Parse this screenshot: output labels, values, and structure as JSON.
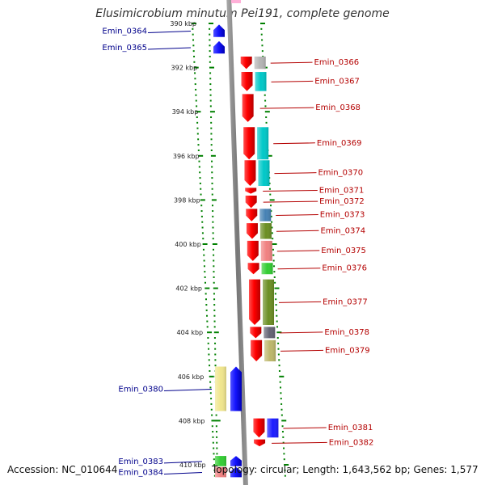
{
  "title": "Elusimicrobium minutum Pei191, complete genome",
  "footer": {
    "accession": "Accession: NC_010644",
    "summary": "Topology: circular; Length: 1,643,562 bp; Genes: 1,577"
  },
  "chart_data": {
    "type": "genome-map",
    "axis_unit": "kbp",
    "range_kbp": [
      390,
      410.4
    ],
    "ticks": [
      {
        "kbp": 390,
        "label": "390 kbp"
      },
      {
        "kbp": 392,
        "label": "392 kbp"
      },
      {
        "kbp": 394,
        "label": "394 kbp"
      },
      {
        "kbp": 396,
        "label": "396 kbp"
      },
      {
        "kbp": 398,
        "label": "398 kbp"
      },
      {
        "kbp": 400,
        "label": "400 kbp"
      },
      {
        "kbp": 402,
        "label": "402 kbp"
      },
      {
        "kbp": 404,
        "label": "404 kbp"
      },
      {
        "kbp": 406,
        "label": "406 kbp"
      },
      {
        "kbp": 408,
        "label": "408 kbp"
      },
      {
        "kbp": 410,
        "label": "410 kbp"
      }
    ],
    "genes": [
      {
        "id": "Emin_0364",
        "strand": "left",
        "start": 390.05,
        "end": 390.65,
        "color": "#1a1aff",
        "func_color": ""
      },
      {
        "id": "Emin_0365",
        "strand": "left",
        "start": 390.8,
        "end": 391.4,
        "color": "#1a1aff",
        "func_color": ""
      },
      {
        "id": "Emin_0366",
        "strand": "right",
        "start": 391.5,
        "end": 392.1,
        "color": "#ff0000",
        "func_color": "#b4b4b4"
      },
      {
        "id": "Emin_0367",
        "strand": "right",
        "start": 392.2,
        "end": 393.1,
        "color": "#ff0000",
        "func_color": "#00c8c8"
      },
      {
        "id": "Emin_0368",
        "strand": "right",
        "start": 393.2,
        "end": 394.5,
        "color": "#ff0000",
        "func_color": ""
      },
      {
        "id": "Emin_0369",
        "strand": "right",
        "start": 394.7,
        "end": 396.2,
        "color": "#ff0000",
        "func_color": "#00c8c8"
      },
      {
        "id": "Emin_0370",
        "strand": "right",
        "start": 396.2,
        "end": 397.4,
        "color": "#ff0000",
        "func_color": "#00c8c8"
      },
      {
        "id": "Emin_0371",
        "strand": "right",
        "start": 397.45,
        "end": 397.75,
        "color": "#ff0000",
        "func_color": ""
      },
      {
        "id": "Emin_0372",
        "strand": "right",
        "start": 397.8,
        "end": 398.4,
        "color": "#ff0000",
        "func_color": ""
      },
      {
        "id": "Emin_0373",
        "strand": "right",
        "start": 398.4,
        "end": 399.0,
        "color": "#ff0000",
        "func_color": "#4682b4"
      },
      {
        "id": "Emin_0374",
        "strand": "right",
        "start": 399.05,
        "end": 399.8,
        "color": "#ff0000",
        "func_color": "#6b8e23"
      },
      {
        "id": "Emin_0375",
        "strand": "right",
        "start": 399.85,
        "end": 400.8,
        "color": "#ff0000",
        "func_color": "#f08080"
      },
      {
        "id": "Emin_0376",
        "strand": "right",
        "start": 400.85,
        "end": 401.4,
        "color": "#ff0000",
        "func_color": "#32cd32"
      },
      {
        "id": "Emin_0377",
        "strand": "right",
        "start": 401.6,
        "end": 403.7,
        "color": "#ff0000",
        "func_color": "#6b8e23"
      },
      {
        "id": "Emin_0378",
        "strand": "right",
        "start": 403.75,
        "end": 404.3,
        "color": "#ff0000",
        "func_color": "#646473"
      },
      {
        "id": "Emin_0379",
        "strand": "right",
        "start": 404.35,
        "end": 405.35,
        "color": "#ff0000",
        "func_color": "#bdb76b"
      },
      {
        "id": "Emin_0380",
        "strand": "left",
        "start": 405.55,
        "end": 407.6,
        "color": "#1a1aff",
        "func_color": "#f0e68c"
      },
      {
        "id": "Emin_0381",
        "strand": "right",
        "start": 407.9,
        "end": 408.8,
        "color": "#ff0000",
        "func_color": "#1a1aff"
      },
      {
        "id": "Emin_0382",
        "strand": "right",
        "start": 408.85,
        "end": 409.2,
        "color": "#ff0000",
        "func_color": ""
      },
      {
        "id": "Emin_0383",
        "strand": "left",
        "start": 409.6,
        "end": 410.1,
        "color": "#1a1aff",
        "func_color": "#32cd32"
      },
      {
        "id": "Emin_0384",
        "strand": "left",
        "start": 410.1,
        "end": 410.6,
        "color": "#1a1aff",
        "func_color": "#f08080"
      }
    ]
  },
  "colors": {
    "forward": "#ff0000",
    "reverse": "#1a1aff",
    "left_label": "#00008b",
    "right_label": "#b40000",
    "tick": "#008000",
    "backbone": "#888888"
  }
}
